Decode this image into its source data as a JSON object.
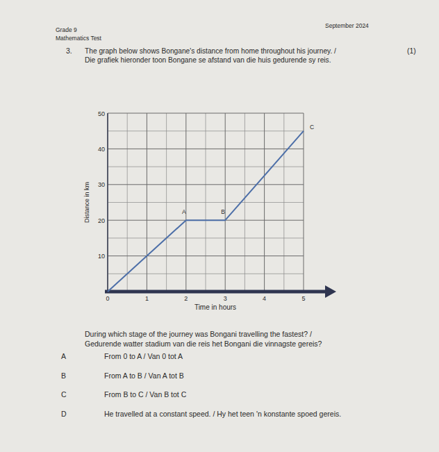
{
  "header": {
    "grade": "Grade 9",
    "subject": "Mathematics Test",
    "date": "September 2024"
  },
  "question": {
    "number": "3.",
    "text_en": "The graph below shows Bongane's distance from home throughout his journey. /",
    "text_af": "Die grafiek hieronder toon Bongane se afstand van die huis gedurende sy reis.",
    "marks": "(1)",
    "prompt_en": "During which stage of the journey was Bongani travelling the fastest? /",
    "prompt_af": "Gedurende watter stadium van die reis het Bongani die vinnagste gereis?",
    "options": [
      {
        "letter": "A",
        "text": "From 0 to A / Van 0 tot A"
      },
      {
        "letter": "B",
        "text": "From A to B / Van A tot B"
      },
      {
        "letter": "C",
        "text": "From B to C / Van B tot C"
      },
      {
        "letter": "D",
        "text": "He travelled at a constant speed. / Hy het teen 'n konstante spoed gereis."
      }
    ]
  },
  "chart_data": {
    "type": "line",
    "x_label": "Time in hours",
    "y_label": "Distance in km",
    "x": [
      0,
      2,
      3,
      5
    ],
    "values": [
      0,
      20,
      20,
      45
    ],
    "color": "#4d6fa8",
    "xlim": [
      0,
      5
    ],
    "ylim": [
      0,
      50
    ],
    "xticks": [
      0,
      1,
      2,
      3,
      4,
      5
    ],
    "yticks": [
      10,
      20,
      30,
      40,
      50
    ],
    "grid": true,
    "annotations": [
      {
        "text": "A",
        "x": 2,
        "y": 20
      },
      {
        "text": "B",
        "x": 3,
        "y": 20
      },
      {
        "text": "C",
        "x": 5,
        "y": 45
      }
    ]
  }
}
